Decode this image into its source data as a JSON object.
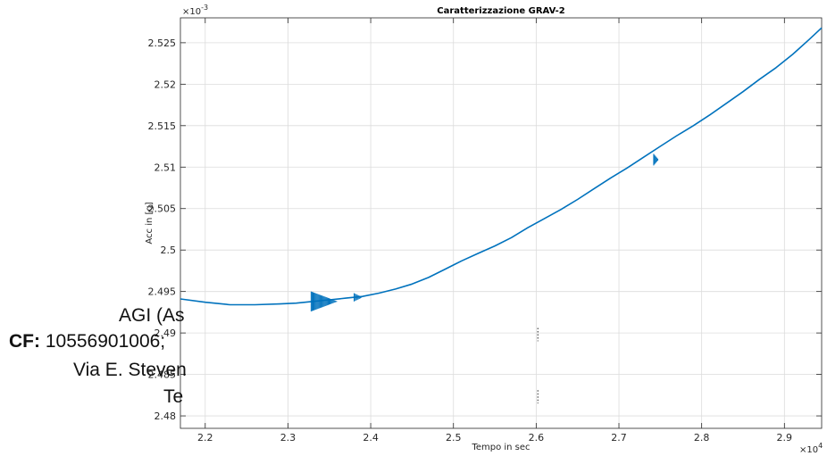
{
  "chart_data": {
    "type": "line",
    "title": "Caratterizzazione GRAV-2",
    "xlabel": "Tempo in sec",
    "ylabel": "Acc in [g]",
    "x_multiplier": "×10",
    "x_multiplier_exp": "4",
    "y_multiplier": "×10",
    "y_multiplier_exp": "-3",
    "xlim": [
      21700,
      29450
    ],
    "ylim": [
      2.4785,
      2.528
    ],
    "grid": true,
    "x_ticks": [
      22000,
      23000,
      24000,
      25000,
      26000,
      27000,
      28000,
      29000
    ],
    "x_tick_labels": [
      "2.2",
      "2.3",
      "2.4",
      "2.5",
      "2.6",
      "2.7",
      "2.8",
      "2.9"
    ],
    "y_ticks": [
      2.48,
      2.485,
      2.49,
      2.495,
      2.5,
      2.505,
      2.51,
      2.515,
      2.52,
      2.525
    ],
    "y_tick_labels": [
      "2.48",
      "2.485",
      "2.49",
      "2.495",
      "2.5",
      "2.505",
      "2.51",
      "2.515",
      "2.52",
      "2.525"
    ],
    "series": [
      {
        "color": "#0072BD",
        "x": [
          21700,
          22000,
          22300,
          22600,
          22900,
          23100,
          23300,
          23500,
          23700,
          23900,
          24100,
          24300,
          24500,
          24700,
          24900,
          25100,
          25300,
          25500,
          25700,
          25900,
          26100,
          26300,
          26500,
          26700,
          26900,
          27100,
          27300,
          27500,
          27700,
          27900,
          28100,
          28300,
          28500,
          28700,
          28900,
          29100,
          29300,
          29450
        ],
        "y": [
          2.4941,
          2.4937,
          2.4934,
          2.4934,
          2.4935,
          2.4936,
          2.4938,
          2.494,
          2.4942,
          2.4944,
          2.4948,
          2.4953,
          2.4959,
          2.4967,
          2.4977,
          2.4987,
          2.4996,
          2.5005,
          2.5015,
          2.5027,
          2.5038,
          2.5049,
          2.5061,
          2.5074,
          2.5087,
          2.5099,
          2.5112,
          2.5125,
          2.5138,
          2.515,
          2.5163,
          2.5177,
          2.5191,
          2.5206,
          2.522,
          2.5236,
          2.5254,
          2.5268
        ]
      }
    ]
  },
  "overlay": {
    "line1": "AGI (As",
    "line2_bold": "CF:",
    "line2_rest": " 10556901006;",
    "line3": "Via E. Steven",
    "line4": "Te"
  }
}
